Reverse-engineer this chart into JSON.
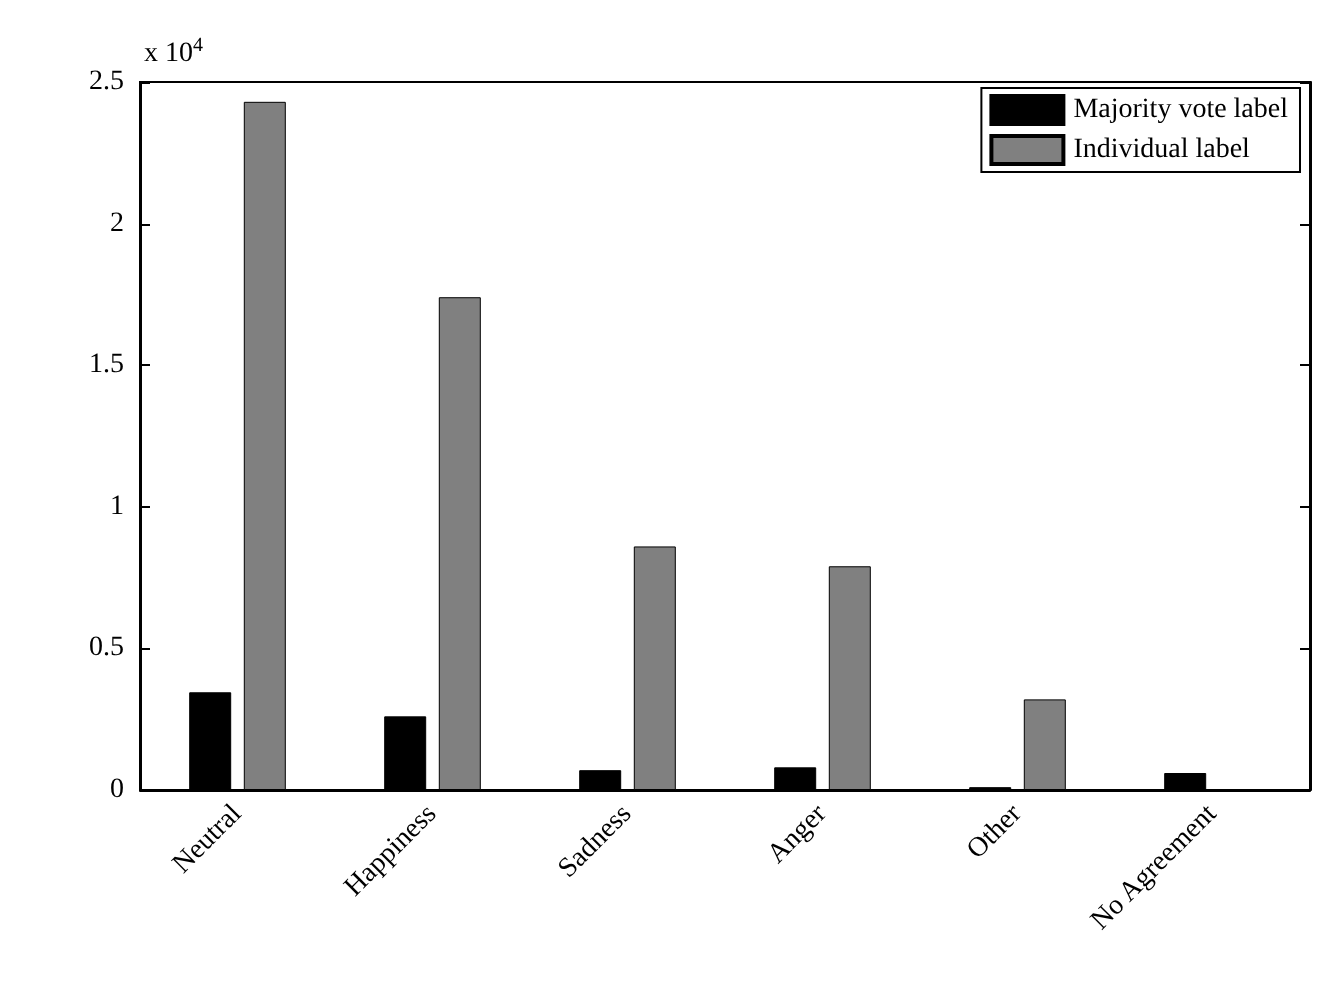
{
  "chart_data": {
    "type": "bar",
    "categories": [
      "Neutral",
      "Happiness",
      "Sadness",
      "Anger",
      "Other",
      "No Agreement"
    ],
    "series": [
      {
        "name": "Majority vote label",
        "color": "#000000",
        "values": [
          0.345,
          0.26,
          0.07,
          0.08,
          0.01,
          0.06
        ]
      },
      {
        "name": "Individual label",
        "color": "#808080",
        "values": [
          2.43,
          1.74,
          0.86,
          0.79,
          0.32,
          null
        ]
      }
    ],
    "ylim": [
      0,
      2.5
    ],
    "yticks": [
      0,
      0.5,
      1,
      1.5,
      2,
      2.5
    ],
    "annotations": [
      "x 10$^{4}$"
    ],
    "grid": false,
    "legend": "top right"
  }
}
